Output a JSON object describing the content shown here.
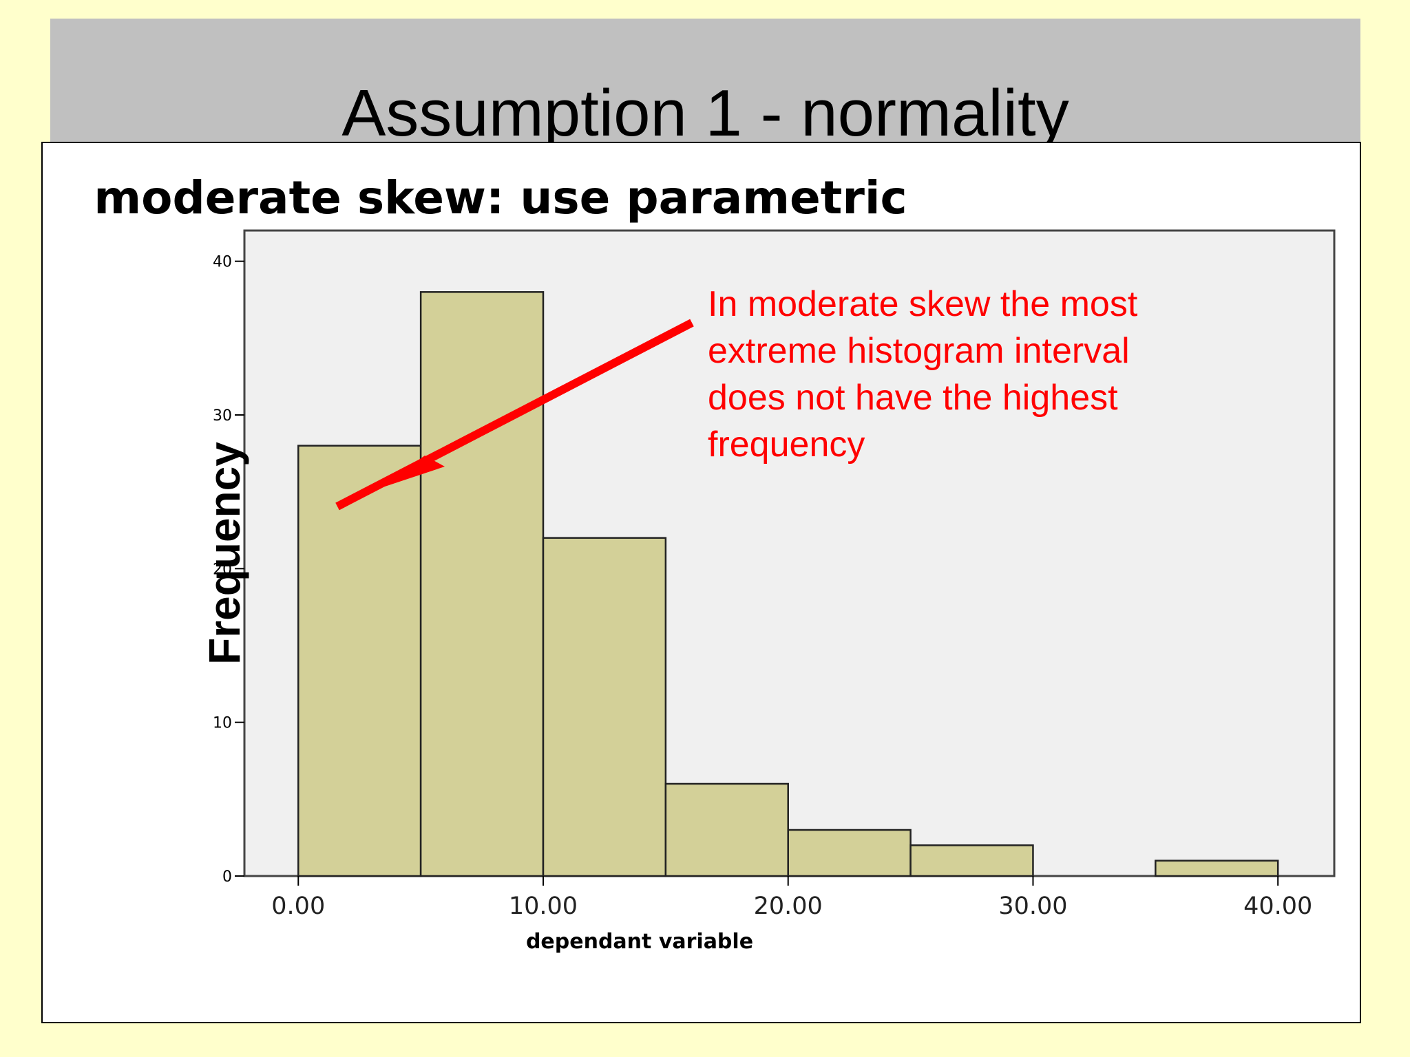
{
  "slide": {
    "title": "Assumption 1 - normality"
  },
  "chart_data": {
    "type": "bar",
    "title": "moderate skew: use parametric",
    "xlabel": "dependant variable",
    "ylabel": "Frequency",
    "bins": [
      {
        "x0": 0,
        "x1": 5,
        "value": 28
      },
      {
        "x0": 5,
        "x1": 10,
        "value": 38
      },
      {
        "x0": 10,
        "x1": 15,
        "value": 22
      },
      {
        "x0": 15,
        "x1": 20,
        "value": 6
      },
      {
        "x0": 20,
        "x1": 25,
        "value": 3
      },
      {
        "x0": 25,
        "x1": 30,
        "value": 2
      },
      {
        "x0": 30,
        "x1": 35,
        "value": 0
      },
      {
        "x0": 35,
        "x1": 40,
        "value": 1
      }
    ],
    "xticks": [
      "0.00",
      "10.00",
      "20.00",
      "30.00",
      "40.00"
    ],
    "xtick_values": [
      0,
      10,
      20,
      30,
      40
    ],
    "yticks": [
      "0",
      "10",
      "20",
      "30",
      "40"
    ],
    "ytick_values": [
      0,
      10,
      20,
      30,
      40
    ],
    "xlim": [
      -2.2,
      42.3
    ],
    "ylim": [
      0,
      42
    ],
    "bar_color": "#d3d098",
    "plot_background": "#f0f0f0",
    "annotation": {
      "lines": [
        "In moderate skew the most",
        "extreme histogram interval",
        "does not have the highest",
        "frequency"
      ],
      "color": "#ff0000"
    }
  }
}
